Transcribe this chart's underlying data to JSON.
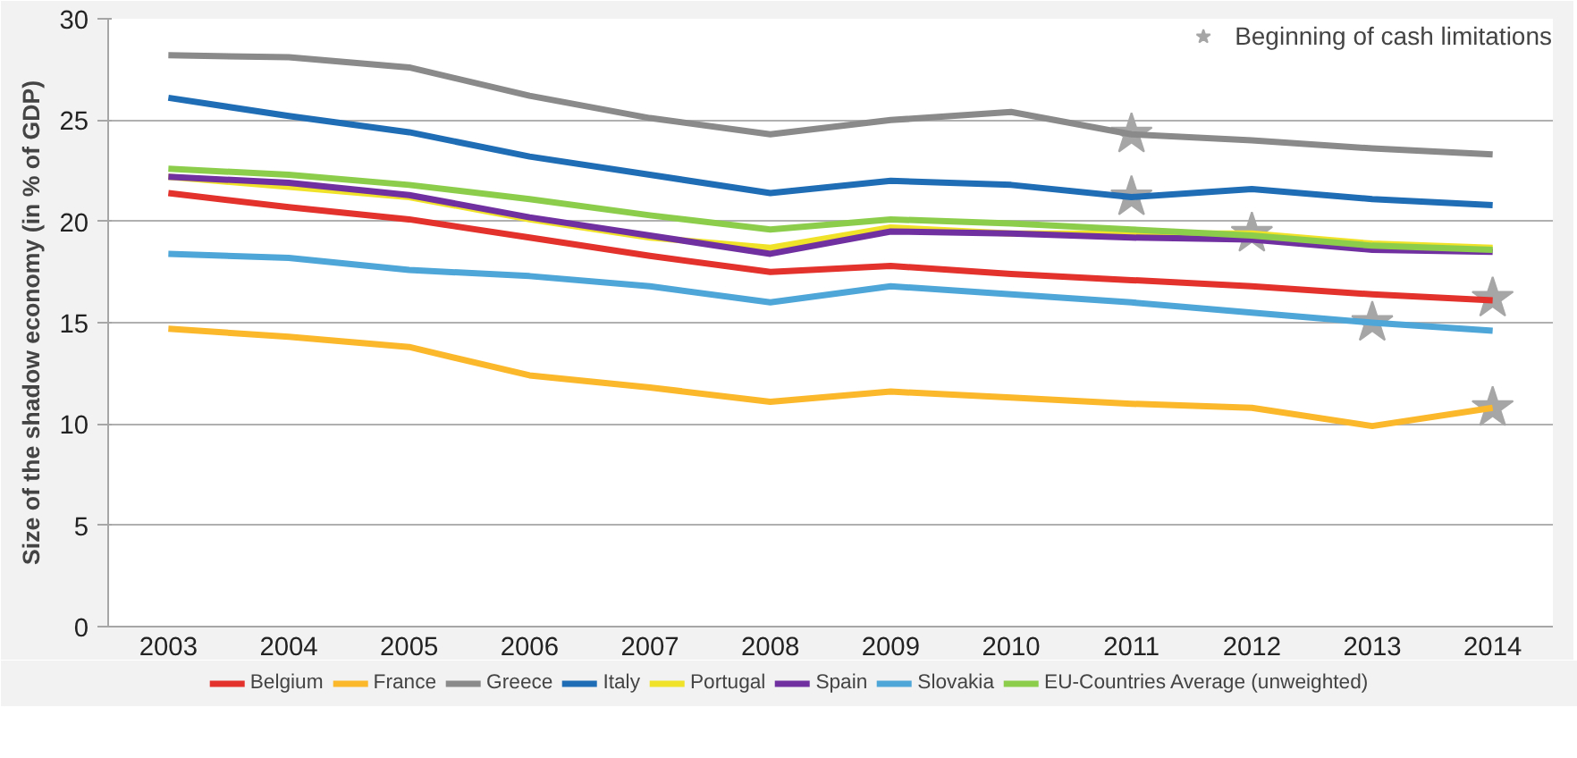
{
  "chart_data": {
    "type": "line",
    "ylabel": "Size of the shadow economy (in % of GDP)",
    "categories": [
      "2003",
      "2004",
      "2005",
      "2006",
      "2007",
      "2008",
      "2009",
      "2010",
      "2011",
      "2012",
      "2013",
      "2014"
    ],
    "ylim": [
      0,
      30
    ],
    "yticks": [
      0,
      5,
      10,
      15,
      20,
      25,
      30
    ],
    "grid": "y",
    "legend": "bottom",
    "marker": "none",
    "line_style": "solid",
    "series": [
      {
        "name": "Belgium",
        "color": "#e3312b",
        "values": [
          21.4,
          20.7,
          20.1,
          19.2,
          18.3,
          17.5,
          17.8,
          17.4,
          17.1,
          16.8,
          16.4,
          16.1
        ]
      },
      {
        "name": "France",
        "color": "#fbb82b",
        "values": [
          14.7,
          14.3,
          13.8,
          12.4,
          11.8,
          11.1,
          11.6,
          11.3,
          11.0,
          10.8,
          9.9,
          10.8
        ]
      },
      {
        "name": "Greece",
        "color": "#8a8a8a",
        "values": [
          28.2,
          28.1,
          27.6,
          26.2,
          25.1,
          24.3,
          25.0,
          25.4,
          24.3,
          24.0,
          23.6,
          23.3
        ]
      },
      {
        "name": "Italy",
        "color": "#1f6db5",
        "values": [
          26.1,
          25.2,
          24.4,
          23.2,
          22.3,
          21.4,
          22.0,
          21.8,
          21.2,
          21.6,
          21.1,
          20.8
        ]
      },
      {
        "name": "Portugal",
        "color": "#f0e228",
        "values": [
          22.2,
          21.7,
          21.2,
          20.1,
          19.2,
          18.7,
          19.7,
          19.4,
          19.4,
          19.4,
          18.9,
          18.7
        ]
      },
      {
        "name": "Spain",
        "color": "#7030a0",
        "values": [
          22.2,
          21.9,
          21.3,
          20.2,
          19.3,
          18.4,
          19.5,
          19.4,
          19.2,
          19.1,
          18.6,
          18.5
        ]
      },
      {
        "name": "Slovakia",
        "color": "#4ea6d8",
        "values": [
          18.4,
          18.2,
          17.6,
          17.3,
          16.8,
          16.0,
          16.8,
          16.4,
          16.0,
          15.5,
          15.0,
          14.6
        ]
      },
      {
        "name": "EU-Countries Average (unweighted)",
        "color": "#8cce4c",
        "values": [
          22.6,
          22.3,
          21.8,
          21.1,
          20.3,
          19.6,
          20.1,
          19.9,
          19.6,
          19.3,
          18.8,
          18.6
        ]
      },
      {
        "name": "Beginning of cash limitations",
        "type": "scatter",
        "marker": "star",
        "color": "#a6a6a6",
        "values": [
          null,
          null,
          null,
          null,
          null,
          null,
          null,
          null,
          24.3,
          19.4,
          15.0,
          16.2
        ]
      },
      {
        "type": "scatter",
        "marker": "star",
        "color": "#a6a6a6",
        "values": [
          null,
          null,
          null,
          null,
          null,
          null,
          null,
          null,
          21.2,
          null,
          null,
          10.8
        ]
      }
    ]
  }
}
